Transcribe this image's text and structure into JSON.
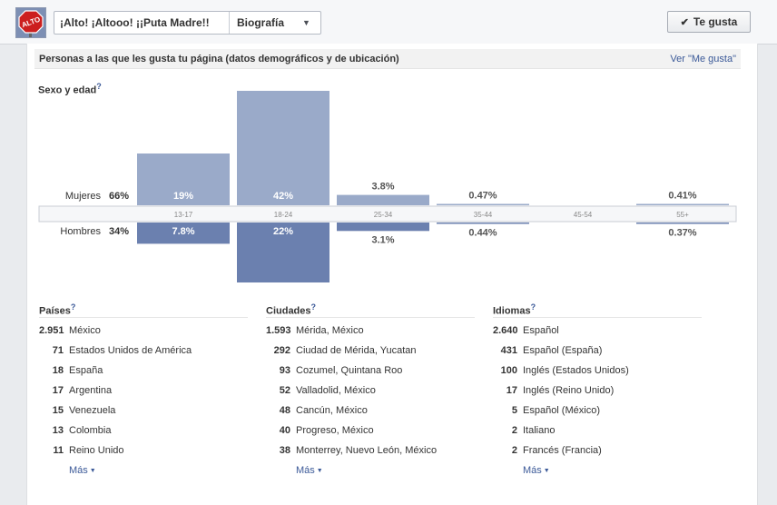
{
  "header": {
    "page_name": "¡Alto! ¡Altooo! ¡¡Puta Madre!!",
    "tab": "Biografía",
    "like_button": "Te gusta",
    "avatar_text": "ALTO"
  },
  "section": {
    "title": "Personas a las que les gusta tu página (datos demográficos y de ubicación)",
    "see_likes": "Ver \"Me gusta\""
  },
  "age_gender": {
    "title": "Sexo y edad",
    "help": "?",
    "women_label": "Mujeres",
    "women_pct": "66%",
    "men_label": "Hombres",
    "men_pct": "34%"
  },
  "chart_data": {
    "type": "bar",
    "title": "Sexo y edad",
    "categories": [
      "13-17",
      "18-24",
      "25-34",
      "35-44",
      "45-54",
      "55+"
    ],
    "series": [
      {
        "name": "Mujeres",
        "values": [
          19,
          42,
          3.8,
          0.47,
          0,
          0.41
        ],
        "labels": [
          "19%",
          "42%",
          "3.8%",
          "0.47%",
          "",
          "0.41%"
        ]
      },
      {
        "name": "Hombres",
        "values": [
          7.8,
          22,
          3.1,
          0.44,
          0,
          0.37
        ],
        "labels": [
          "7.8%",
          "22%",
          "3.1%",
          "0.44%",
          "",
          "0.37%"
        ]
      }
    ],
    "colors": {
      "women": "#9aaac9",
      "men": "#6b80af"
    }
  },
  "countries": {
    "title": "Países",
    "items": [
      {
        "count": "2.951",
        "name": "México"
      },
      {
        "count": "71",
        "name": "Estados Unidos de América"
      },
      {
        "count": "18",
        "name": "España"
      },
      {
        "count": "17",
        "name": "Argentina"
      },
      {
        "count": "15",
        "name": "Venezuela"
      },
      {
        "count": "13",
        "name": "Colombia"
      },
      {
        "count": "11",
        "name": "Reino Unido"
      }
    ],
    "more": "Más"
  },
  "cities": {
    "title": "Ciudades",
    "items": [
      {
        "count": "1.593",
        "name": "Mérida, México"
      },
      {
        "count": "292",
        "name": "Ciudad de Mérida, Yucatan"
      },
      {
        "count": "93",
        "name": "Cozumel, Quintana Roo"
      },
      {
        "count": "52",
        "name": "Valladolid, México"
      },
      {
        "count": "48",
        "name": "Cancún, México"
      },
      {
        "count": "40",
        "name": "Progreso, México"
      },
      {
        "count": "38",
        "name": "Monterrey, Nuevo León, México"
      }
    ],
    "more": "Más"
  },
  "languages": {
    "title": "Idiomas",
    "items": [
      {
        "count": "2.640",
        "name": "Español"
      },
      {
        "count": "431",
        "name": "Español (España)"
      },
      {
        "count": "100",
        "name": "Inglés (Estados Unidos)"
      },
      {
        "count": "17",
        "name": "Inglés (Reino Unido)"
      },
      {
        "count": "5",
        "name": "Español (México)"
      },
      {
        "count": "2",
        "name": "Italiano"
      },
      {
        "count": "2",
        "name": "Francés (Francia)"
      }
    ],
    "more": "Más"
  },
  "icons": {
    "help": "help-icon",
    "check": "check-icon",
    "chevron": "chevron-down-icon",
    "caret": "caret-down-icon"
  }
}
